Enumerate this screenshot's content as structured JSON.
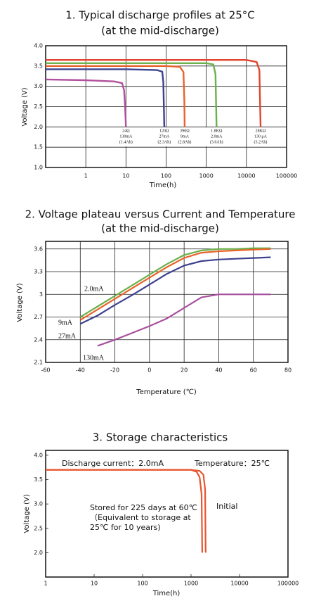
{
  "chart_data": [
    {
      "type": "line",
      "title": "1. Typical discharge profiles at 25°C",
      "subtitle": "(at  the mid-discharge)",
      "xlabel": "Time(h)",
      "ylabel": "Voltage (V)",
      "xscale": "log",
      "grid": true,
      "xlim": [
        0.1,
        100000
      ],
      "xticks": [
        1,
        10,
        100,
        1000,
        10000,
        100000
      ],
      "ylim": [
        1.0,
        4.0
      ],
      "yticks": [
        {
          "value": 1.0,
          "label": "1.0"
        },
        1.5,
        {
          "value": 2.0,
          "label": "2.0"
        },
        2.5,
        {
          "value": 3.0,
          "label": "3.0"
        },
        3.5,
        {
          "value": 4.0,
          "label": "4.0"
        }
      ],
      "series": [
        {
          "label": [
            "24Ω",
            "130mA",
            "(1.4Ah)"
          ],
          "color": "#b0509e",
          "x": [
            0.1,
            1,
            5,
            8,
            9,
            9.5,
            10
          ],
          "values": [
            3.17,
            3.15,
            3.12,
            3.08,
            2.9,
            2.5,
            2.0
          ]
        },
        {
          "label": [
            "120Ω",
            "27mA",
            "(2.3Ah)"
          ],
          "color": "#3d418f",
          "x": [
            0.1,
            10,
            60,
            80,
            85,
            88,
            90
          ],
          "values": [
            3.42,
            3.42,
            3.4,
            3.36,
            3.1,
            2.5,
            2.0
          ]
        },
        {
          "label": [
            "390Ω",
            "9mA",
            "(2.8Ah)"
          ],
          "color": "#e8632a",
          "x": [
            0.1,
            100,
            220,
            270,
            285,
            290
          ],
          "values": [
            3.5,
            3.5,
            3.48,
            3.35,
            2.6,
            2.0
          ]
        },
        {
          "label": [
            "1.8KΩ",
            "2.0mA",
            "(3.6Ah)"
          ],
          "color": "#6ab04c",
          "x": [
            0.1,
            1000,
            1500,
            1700,
            1800
          ],
          "values": [
            3.57,
            3.57,
            3.54,
            3.3,
            2.0
          ]
        },
        {
          "label": [
            "28KΩ",
            "130 μA",
            "(3.2Ah)"
          ],
          "color": "#e0452f",
          "x": [
            0.1,
            10000,
            18000,
            21000,
            22500
          ],
          "values": [
            3.65,
            3.65,
            3.6,
            3.4,
            2.0
          ]
        }
      ]
    },
    {
      "type": "line",
      "title": "2. Voltage plateau versus Current and Temperature",
      "subtitle": "(at the mid-discharge)",
      "xlabel": "Temperature (℃)",
      "ylabel": "Voltage (V)",
      "xscale": "linear",
      "grid": true,
      "xlim": [
        -60,
        80
      ],
      "xticks": [
        -60,
        -40,
        -20,
        0,
        20,
        40,
        60,
        80
      ],
      "ylim": [
        2.1,
        3.7
      ],
      "yticks": [
        2.1,
        2.4,
        2.7,
        3.0,
        3.3,
        3.6
      ],
      "series": [
        {
          "label": [
            "2.0mA"
          ],
          "color": "#6ab04c",
          "x": [
            -40,
            -30,
            -20,
            -10,
            0,
            10,
            20,
            30,
            40,
            50,
            60,
            70
          ],
          "values": [
            2.7,
            2.84,
            2.98,
            3.12,
            3.26,
            3.4,
            3.52,
            3.58,
            3.6,
            3.6,
            3.61,
            3.61
          ]
        },
        {
          "label": [
            "9mA"
          ],
          "color": "#e8632a",
          "x": [
            -40,
            -30,
            -20,
            -10,
            0,
            10,
            20,
            30,
            40,
            50,
            60,
            70
          ],
          "values": [
            2.66,
            2.8,
            2.94,
            3.08,
            3.22,
            3.36,
            3.48,
            3.55,
            3.57,
            3.58,
            3.59,
            3.6
          ]
        },
        {
          "label": [
            "27mA"
          ],
          "color": "#3d418f",
          "x": [
            -40,
            -30,
            -20,
            -10,
            0,
            10,
            20,
            30,
            40,
            50,
            60,
            70
          ],
          "values": [
            2.61,
            2.72,
            2.86,
            2.99,
            3.13,
            3.27,
            3.38,
            3.44,
            3.46,
            3.47,
            3.48,
            3.49
          ]
        },
        {
          "label": [
            "130mA"
          ],
          "color": "#a9509e",
          "x": [
            -30,
            -20,
            -10,
            0,
            10,
            20,
            30,
            40,
            50,
            60,
            70
          ],
          "values": [
            2.32,
            2.4,
            2.49,
            2.58,
            2.68,
            2.82,
            2.96,
            3.0,
            3.0,
            3.0,
            3.0
          ]
        }
      ]
    },
    {
      "type": "line",
      "title": "3. Storage characteristics",
      "xlabel": "Time(h)",
      "ylabel": "Voltage (V)",
      "xscale": "log",
      "grid": false,
      "xlim": [
        1,
        100000
      ],
      "xticks": [
        1,
        10,
        100,
        1000,
        10000,
        100000
      ],
      "ylim": [
        1.5,
        4.1
      ],
      "yticks": [
        {
          "value": 2.0,
          "label": "2.0"
        },
        2.5,
        {
          "value": 3.0,
          "label": "3.0"
        },
        3.5,
        {
          "value": 4.0,
          "label": "4.0"
        }
      ],
      "annotations": [
        "Discharge current：2.0mA",
        "Temperature：25℃"
      ],
      "series": [
        {
          "label": [
            "Stored for 225 days at 60℃",
            "（Equivalent to storage at",
            "25℃ for 10 years)"
          ],
          "color": "#e8552f",
          "x": [
            1,
            1000,
            1300,
            1500,
            1650,
            1700
          ],
          "values": [
            3.7,
            3.7,
            3.66,
            3.55,
            3.2,
            2.0
          ]
        },
        {
          "label": [
            "Initial"
          ],
          "color": "#e8552f",
          "x": [
            1,
            1000,
            1500,
            1800,
            1950,
            2000
          ],
          "values": [
            3.7,
            3.7,
            3.68,
            3.6,
            3.3,
            2.0
          ]
        }
      ]
    }
  ]
}
